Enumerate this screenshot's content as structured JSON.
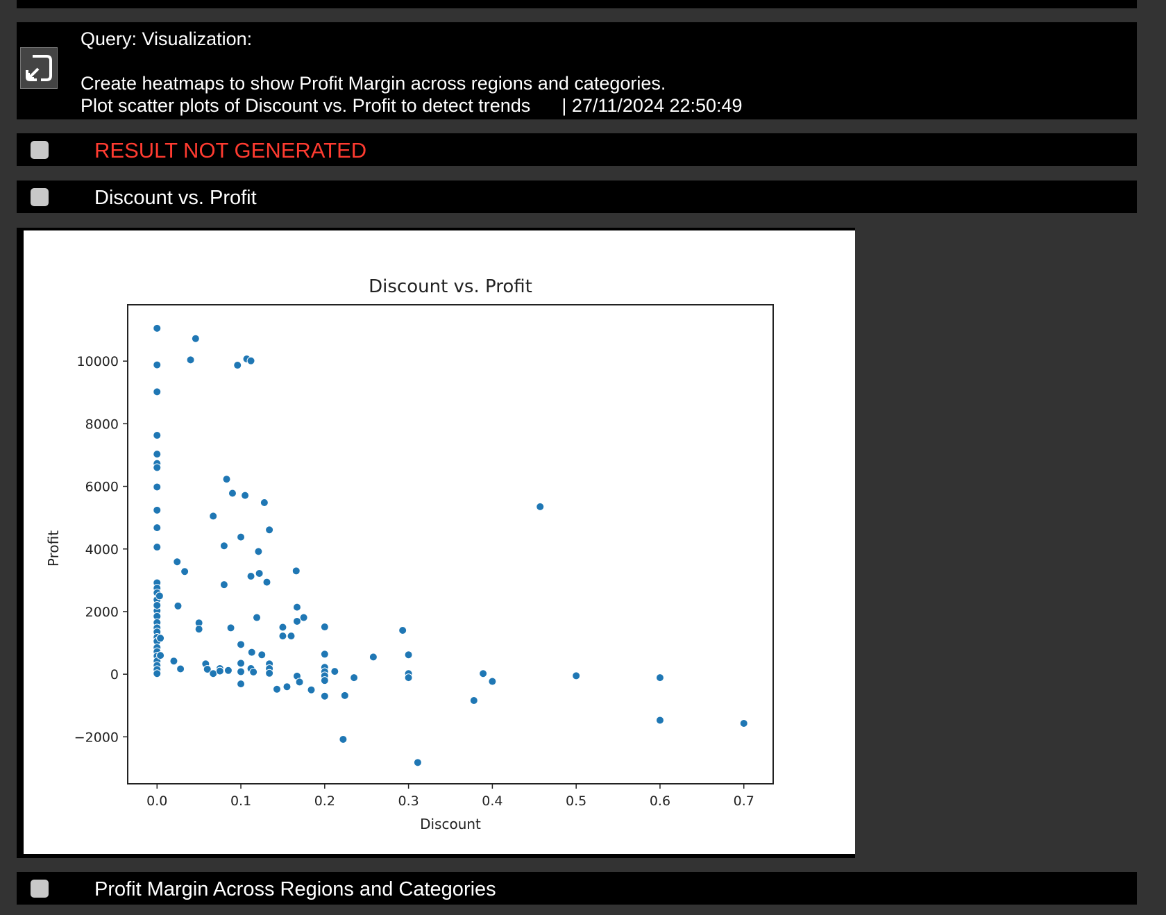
{
  "query": {
    "line1": "Query: Visualization:",
    "line2": "Create heatmaps to show Profit Margin across regions and categories.",
    "line3": "Plot scatter plots of Discount vs. Profit to detect trends",
    "timestamp": "| 27/11/2024 22:50:49",
    "icon": "collapse-arrow-icon"
  },
  "sections": {
    "error": {
      "label": "RESULT NOT GENERATED",
      "color": "#ff3b30"
    },
    "discount_profit": {
      "label": "Discount vs. Profit"
    },
    "profit_margin": {
      "label": "Profit Margin Across Regions and Categories"
    }
  },
  "chart_data": {
    "type": "scatter",
    "title": "Discount vs. Profit",
    "xlabel": "Discount",
    "ylabel": "Profit",
    "xlim": [
      -0.035,
      0.735
    ],
    "ylim": [
      -3500,
      11800
    ],
    "xticks": [
      0.0,
      0.1,
      0.2,
      0.3,
      0.4,
      0.5,
      0.6,
      0.7
    ],
    "xtick_labels": [
      "0.0",
      "0.1",
      "0.2",
      "0.3",
      "0.4",
      "0.5",
      "0.6",
      "0.7"
    ],
    "yticks": [
      -2000,
      0,
      2000,
      4000,
      6000,
      8000,
      10000
    ],
    "ytick_labels": [
      "−2000",
      "0",
      "2000",
      "4000",
      "6000",
      "8000",
      "10000"
    ],
    "grid": false,
    "marker_color": "#1f77b4",
    "points": [
      [
        0.0,
        11050
      ],
      [
        0.0,
        9880
      ],
      [
        0.0,
        9020
      ],
      [
        0.0,
        7630
      ],
      [
        0.0,
        7030
      ],
      [
        0.0,
        6730
      ],
      [
        0.0,
        6600
      ],
      [
        0.0,
        5980
      ],
      [
        0.0,
        5240
      ],
      [
        0.0,
        4680
      ],
      [
        0.0,
        4060
      ],
      [
        0.0,
        2920
      ],
      [
        0.0,
        2750
      ],
      [
        0.0,
        2600
      ],
      [
        0.0,
        2380
      ],
      [
        0.003,
        2500
      ],
      [
        0.0,
        2030
      ],
      [
        0.0,
        1850
      ],
      [
        0.0,
        1650
      ],
      [
        0.0,
        1480
      ],
      [
        0.0,
        1350
      ],
      [
        0.0,
        1180
      ],
      [
        0.0,
        1050
      ],
      [
        0.0,
        850
      ],
      [
        0.0,
        720
      ],
      [
        0.0,
        580
      ],
      [
        0.0,
        420
      ],
      [
        0.0,
        280
      ],
      [
        0.0,
        150
      ],
      [
        0.0,
        20
      ],
      [
        0.0,
        2200
      ],
      [
        0.004,
        1150
      ],
      [
        0.004,
        600
      ],
      [
        0.02,
        420
      ],
      [
        0.024,
        3590
      ],
      [
        0.025,
        2180
      ],
      [
        0.028,
        170
      ],
      [
        0.033,
        3280
      ],
      [
        0.04,
        10040
      ],
      [
        0.046,
        10720
      ],
      [
        0.05,
        1640
      ],
      [
        0.05,
        1440
      ],
      [
        0.058,
        330
      ],
      [
        0.06,
        160
      ],
      [
        0.067,
        5050
      ],
      [
        0.067,
        20
      ],
      [
        0.075,
        180
      ],
      [
        0.075,
        100
      ],
      [
        0.08,
        4100
      ],
      [
        0.08,
        2860
      ],
      [
        0.083,
        6230
      ],
      [
        0.085,
        120
      ],
      [
        0.088,
        1480
      ],
      [
        0.09,
        5780
      ],
      [
        0.096,
        9870
      ],
      [
        0.1,
        4380
      ],
      [
        0.1,
        950
      ],
      [
        0.1,
        350
      ],
      [
        0.1,
        80
      ],
      [
        0.1,
        -310
      ],
      [
        0.105,
        5710
      ],
      [
        0.107,
        10070
      ],
      [
        0.112,
        10010
      ],
      [
        0.112,
        3130
      ],
      [
        0.112,
        180
      ],
      [
        0.113,
        700
      ],
      [
        0.115,
        70
      ],
      [
        0.119,
        1810
      ],
      [
        0.121,
        3920
      ],
      [
        0.122,
        3220
      ],
      [
        0.125,
        620
      ],
      [
        0.128,
        5480
      ],
      [
        0.131,
        2940
      ],
      [
        0.134,
        4610
      ],
      [
        0.134,
        330
      ],
      [
        0.134,
        180
      ],
      [
        0.134,
        30
      ],
      [
        0.143,
        -480
      ],
      [
        0.15,
        1500
      ],
      [
        0.15,
        1220
      ],
      [
        0.155,
        -400
      ],
      [
        0.16,
        1220
      ],
      [
        0.166,
        3300
      ],
      [
        0.167,
        2140
      ],
      [
        0.167,
        1690
      ],
      [
        0.167,
        -60
      ],
      [
        0.17,
        -250
      ],
      [
        0.175,
        1810
      ],
      [
        0.184,
        -500
      ],
      [
        0.2,
        1510
      ],
      [
        0.2,
        640
      ],
      [
        0.2,
        220
      ],
      [
        0.2,
        80
      ],
      [
        0.2,
        -50
      ],
      [
        0.2,
        -200
      ],
      [
        0.2,
        -700
      ],
      [
        0.212,
        90
      ],
      [
        0.222,
        -2080
      ],
      [
        0.224,
        -680
      ],
      [
        0.235,
        -110
      ],
      [
        0.258,
        550
      ],
      [
        0.293,
        1400
      ],
      [
        0.3,
        620
      ],
      [
        0.3,
        20
      ],
      [
        0.3,
        -110
      ],
      [
        0.311,
        -2820
      ],
      [
        0.378,
        -840
      ],
      [
        0.389,
        20
      ],
      [
        0.4,
        -230
      ],
      [
        0.457,
        5350
      ],
      [
        0.5,
        -50
      ],
      [
        0.6,
        -110
      ],
      [
        0.6,
        -1470
      ],
      [
        0.7,
        -1570
      ]
    ]
  }
}
